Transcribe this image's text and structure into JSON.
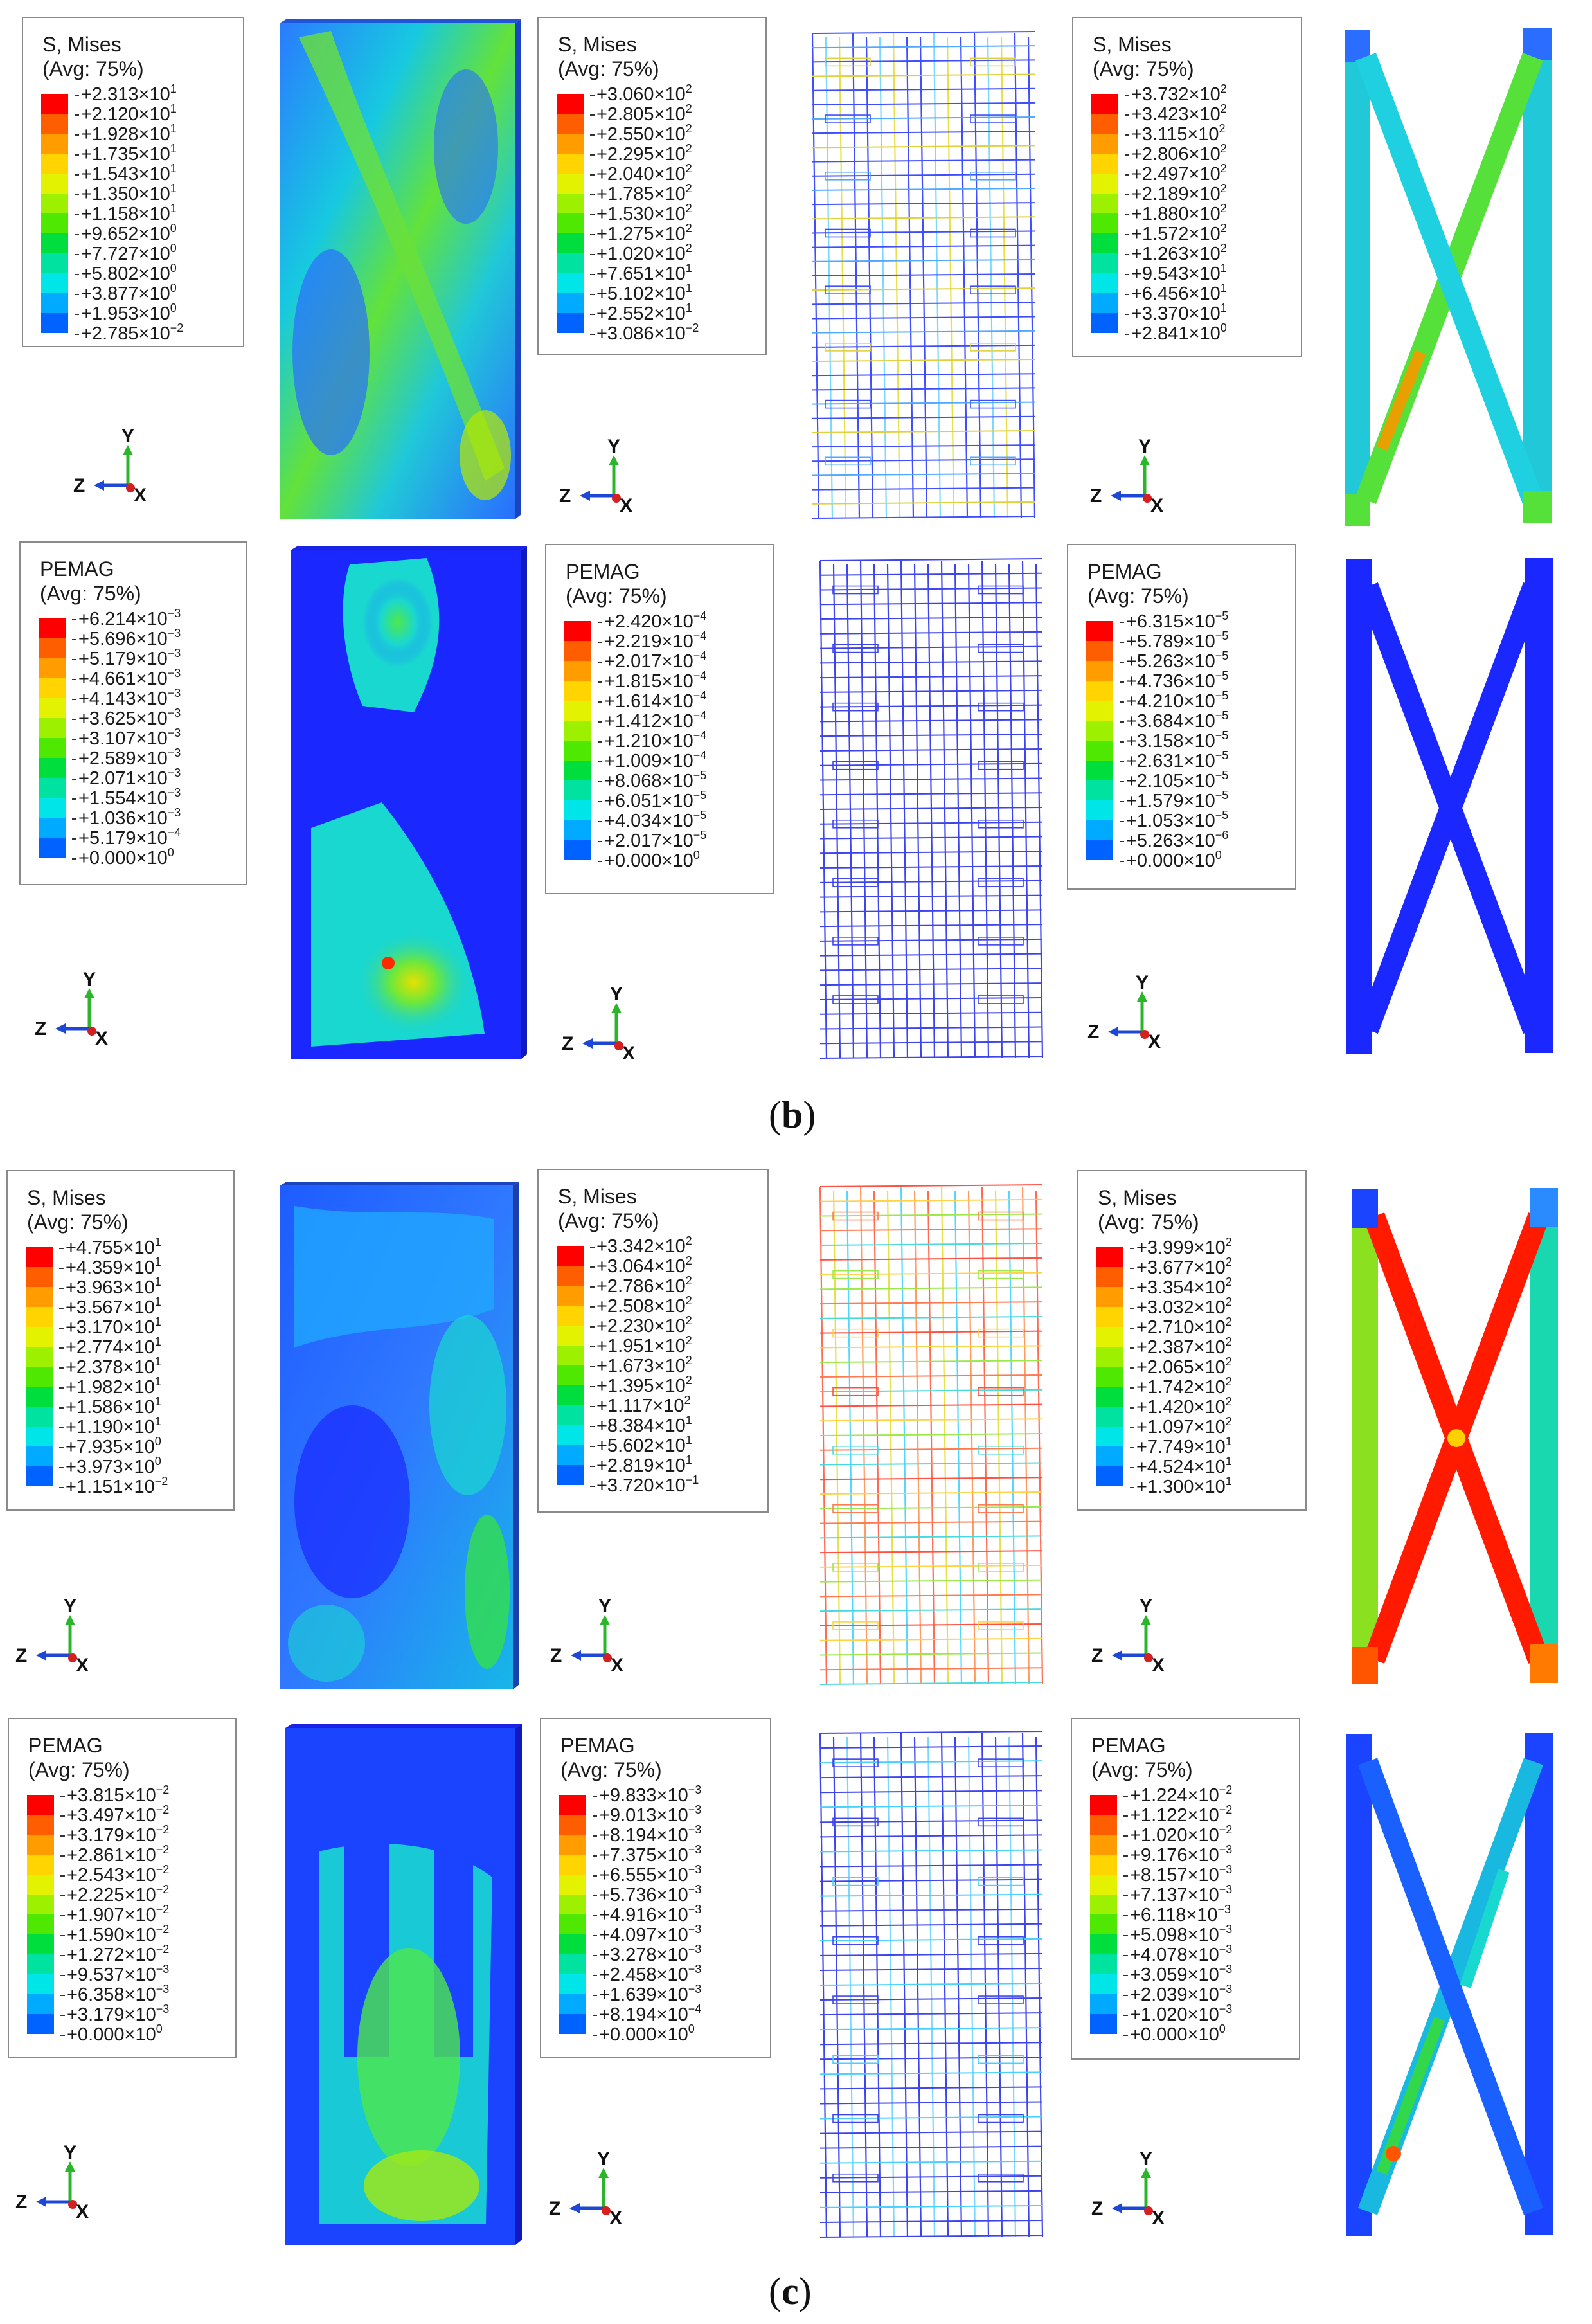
{
  "figure": {
    "captions": [
      "(b)",
      "(c)"
    ],
    "caption_letters": [
      "b",
      "c"
    ],
    "colors": {
      "legend_scale": [
        "#ff0000",
        "#ff5e00",
        "#ff9d00",
        "#ffd400",
        "#e3f200",
        "#9df000",
        "#4ee800",
        "#00de3e",
        "#00e2a0",
        "#00e6e8",
        "#00aaff",
        "#0062ff",
        "#1a1aff"
      ],
      "background": "#ffffff",
      "axis_y": "#2bb52b",
      "axis_z": "#1f47d6",
      "axis_x": "#d62020"
    },
    "axes_labels": {
      "y": "Y",
      "z": "Z",
      "x": "X"
    },
    "legends": [
      {
        "title_line1": "S, Mises",
        "title_line2": "(Avg: 75%)",
        "values": [
          [
            "+2.313×10",
            "1"
          ],
          [
            "+2.120×10",
            "1"
          ],
          [
            "+1.928×10",
            "1"
          ],
          [
            "+1.735×10",
            "1"
          ],
          [
            "+1.543×10",
            "1"
          ],
          [
            "+1.350×10",
            "1"
          ],
          [
            "+1.158×10",
            "1"
          ],
          [
            "+9.652×10",
            "0"
          ],
          [
            "+7.727×10",
            "0"
          ],
          [
            "+5.802×10",
            "0"
          ],
          [
            "+3.877×10",
            "0"
          ],
          [
            "+1.953×10",
            "0"
          ],
          [
            "+2.785×10",
            "−2"
          ]
        ]
      },
      {
        "title_line1": "S, Mises",
        "title_line2": "(Avg: 75%)",
        "values": [
          [
            "+3.060×10",
            "2"
          ],
          [
            "+2.805×10",
            "2"
          ],
          [
            "+2.550×10",
            "2"
          ],
          [
            "+2.295×10",
            "2"
          ],
          [
            "+2.040×10",
            "2"
          ],
          [
            "+1.785×10",
            "2"
          ],
          [
            "+1.530×10",
            "2"
          ],
          [
            "+1.275×10",
            "2"
          ],
          [
            "+1.020×10",
            "2"
          ],
          [
            "+7.651×10",
            "1"
          ],
          [
            "+5.102×10",
            "1"
          ],
          [
            "+2.552×10",
            "1"
          ],
          [
            "+3.086×10",
            "−2"
          ]
        ]
      },
      {
        "title_line1": "S, Mises",
        "title_line2": "(Avg: 75%)",
        "values": [
          [
            "+3.732×10",
            "2"
          ],
          [
            "+3.423×10",
            "2"
          ],
          [
            "+3.115×10",
            "2"
          ],
          [
            "+2.806×10",
            "2"
          ],
          [
            "+2.497×10",
            "2"
          ],
          [
            "+2.189×10",
            "2"
          ],
          [
            "+1.880×10",
            "2"
          ],
          [
            "+1.572×10",
            "2"
          ],
          [
            "+1.263×10",
            "2"
          ],
          [
            "+9.543×10",
            "1"
          ],
          [
            "+6.456×10",
            "1"
          ],
          [
            "+3.370×10",
            "1"
          ],
          [
            "+2.841×10",
            "0"
          ]
        ]
      },
      {
        "title_line1": "PEMAG",
        "title_line2": "(Avg: 75%)",
        "values": [
          [
            "+6.214×10",
            "−3"
          ],
          [
            "+5.696×10",
            "−3"
          ],
          [
            "+5.179×10",
            "−3"
          ],
          [
            "+4.661×10",
            "−3"
          ],
          [
            "+4.143×10",
            "−3"
          ],
          [
            "+3.625×10",
            "−3"
          ],
          [
            "+3.107×10",
            "−3"
          ],
          [
            "+2.589×10",
            "−3"
          ],
          [
            "+2.071×10",
            "−3"
          ],
          [
            "+1.554×10",
            "−3"
          ],
          [
            "+1.036×10",
            "−3"
          ],
          [
            "+5.179×10",
            "−4"
          ],
          [
            "+0.000×10",
            "0"
          ]
        ]
      },
      {
        "title_line1": "PEMAG",
        "title_line2": "(Avg: 75%)",
        "values": [
          [
            "+2.420×10",
            "−4"
          ],
          [
            "+2.219×10",
            "−4"
          ],
          [
            "+2.017×10",
            "−4"
          ],
          [
            "+1.815×10",
            "−4"
          ],
          [
            "+1.614×10",
            "−4"
          ],
          [
            "+1.412×10",
            "−4"
          ],
          [
            "+1.210×10",
            "−4"
          ],
          [
            "+1.009×10",
            "−4"
          ],
          [
            "+8.068×10",
            "−5"
          ],
          [
            "+6.051×10",
            "−5"
          ],
          [
            "+4.034×10",
            "−5"
          ],
          [
            "+2.017×10",
            "−5"
          ],
          [
            "+0.000×10",
            "0"
          ]
        ]
      },
      {
        "title_line1": "PEMAG",
        "title_line2": "(Avg: 75%)",
        "values": [
          [
            "+6.315×10",
            "−5"
          ],
          [
            "+5.789×10",
            "−5"
          ],
          [
            "+5.263×10",
            "−5"
          ],
          [
            "+4.736×10",
            "−5"
          ],
          [
            "+4.210×10",
            "−5"
          ],
          [
            "+3.684×10",
            "−5"
          ],
          [
            "+3.158×10",
            "−5"
          ],
          [
            "+2.631×10",
            "−5"
          ],
          [
            "+2.105×10",
            "−5"
          ],
          [
            "+1.579×10",
            "−5"
          ],
          [
            "+1.053×10",
            "−5"
          ],
          [
            "+5.263×10",
            "−6"
          ],
          [
            "+0.000×10",
            "0"
          ]
        ]
      },
      {
        "title_line1": "S, Mises",
        "title_line2": "(Avg: 75%)",
        "values": [
          [
            "+4.755×10",
            "1"
          ],
          [
            "+4.359×10",
            "1"
          ],
          [
            "+3.963×10",
            "1"
          ],
          [
            "+3.567×10",
            "1"
          ],
          [
            "+3.170×10",
            "1"
          ],
          [
            "+2.774×10",
            "1"
          ],
          [
            "+2.378×10",
            "1"
          ],
          [
            "+1.982×10",
            "1"
          ],
          [
            "+1.586×10",
            "1"
          ],
          [
            "+1.190×10",
            "1"
          ],
          [
            "+7.935×10",
            "0"
          ],
          [
            "+3.973×10",
            "0"
          ],
          [
            "+1.151×10",
            "−2"
          ]
        ]
      },
      {
        "title_line1": "S, Mises",
        "title_line2": "(Avg: 75%)",
        "values": [
          [
            "+3.342×10",
            "2"
          ],
          [
            "+3.064×10",
            "2"
          ],
          [
            "+2.786×10",
            "2"
          ],
          [
            "+2.508×10",
            "2"
          ],
          [
            "+2.230×10",
            "2"
          ],
          [
            "+1.951×10",
            "2"
          ],
          [
            "+1.673×10",
            "2"
          ],
          [
            "+1.395×10",
            "2"
          ],
          [
            "+1.117×10",
            "2"
          ],
          [
            "+8.384×10",
            "1"
          ],
          [
            "+5.602×10",
            "1"
          ],
          [
            "+2.819×10",
            "1"
          ],
          [
            "+3.720×10",
            "−1"
          ]
        ]
      },
      {
        "title_line1": "S, Mises",
        "title_line2": "(Avg: 75%)",
        "values": [
          [
            "+3.999×10",
            "2"
          ],
          [
            "+3.677×10",
            "2"
          ],
          [
            "+3.354×10",
            "2"
          ],
          [
            "+3.032×10",
            "2"
          ],
          [
            "+2.710×10",
            "2"
          ],
          [
            "+2.387×10",
            "2"
          ],
          [
            "+2.065×10",
            "2"
          ],
          [
            "+1.742×10",
            "2"
          ],
          [
            "+1.420×10",
            "2"
          ],
          [
            "+1.097×10",
            "2"
          ],
          [
            "+7.749×10",
            "1"
          ],
          [
            "+4.524×10",
            "1"
          ],
          [
            "+1.300×10",
            "1"
          ]
        ]
      },
      {
        "title_line1": "PEMAG",
        "title_line2": "(Avg: 75%)",
        "values": [
          [
            "+3.815×10",
            "−2"
          ],
          [
            "+3.497×10",
            "−2"
          ],
          [
            "+3.179×10",
            "−2"
          ],
          [
            "+2.861×10",
            "−2"
          ],
          [
            "+2.543×10",
            "−2"
          ],
          [
            "+2.225×10",
            "−2"
          ],
          [
            "+1.907×10",
            "−2"
          ],
          [
            "+1.590×10",
            "−2"
          ],
          [
            "+1.272×10",
            "−2"
          ],
          [
            "+9.537×10",
            "−3"
          ],
          [
            "+6.358×10",
            "−3"
          ],
          [
            "+3.179×10",
            "−3"
          ],
          [
            "+0.000×10",
            "0"
          ]
        ]
      },
      {
        "title_line1": "PEMAG",
        "title_line2": "(Avg: 75%)",
        "values": [
          [
            "+9.833×10",
            "−3"
          ],
          [
            "+9.013×10",
            "−3"
          ],
          [
            "+8.194×10",
            "−3"
          ],
          [
            "+7.375×10",
            "−3"
          ],
          [
            "+6.555×10",
            "−3"
          ],
          [
            "+5.736×10",
            "−3"
          ],
          [
            "+4.916×10",
            "−3"
          ],
          [
            "+4.097×10",
            "−3"
          ],
          [
            "+3.278×10",
            "−3"
          ],
          [
            "+2.458×10",
            "−3"
          ],
          [
            "+1.639×10",
            "−3"
          ],
          [
            "+8.194×10",
            "−4"
          ],
          [
            "+0.000×10",
            "0"
          ]
        ]
      },
      {
        "title_line1": "PEMAG",
        "title_line2": "(Avg: 75%)",
        "values": [
          [
            "+1.224×10",
            "−2"
          ],
          [
            "+1.122×10",
            "−2"
          ],
          [
            "+1.020×10",
            "−2"
          ],
          [
            "+9.176×10",
            "−3"
          ],
          [
            "+8.157×10",
            "−3"
          ],
          [
            "+7.137×10",
            "−3"
          ],
          [
            "+6.118×10",
            "−3"
          ],
          [
            "+5.098×10",
            "−3"
          ],
          [
            "+4.078×10",
            "−3"
          ],
          [
            "+3.059×10",
            "−3"
          ],
          [
            "+2.039×10",
            "−3"
          ],
          [
            "+1.020×10",
            "−3"
          ],
          [
            "+0.000×10",
            "0"
          ]
        ]
      }
    ]
  }
}
